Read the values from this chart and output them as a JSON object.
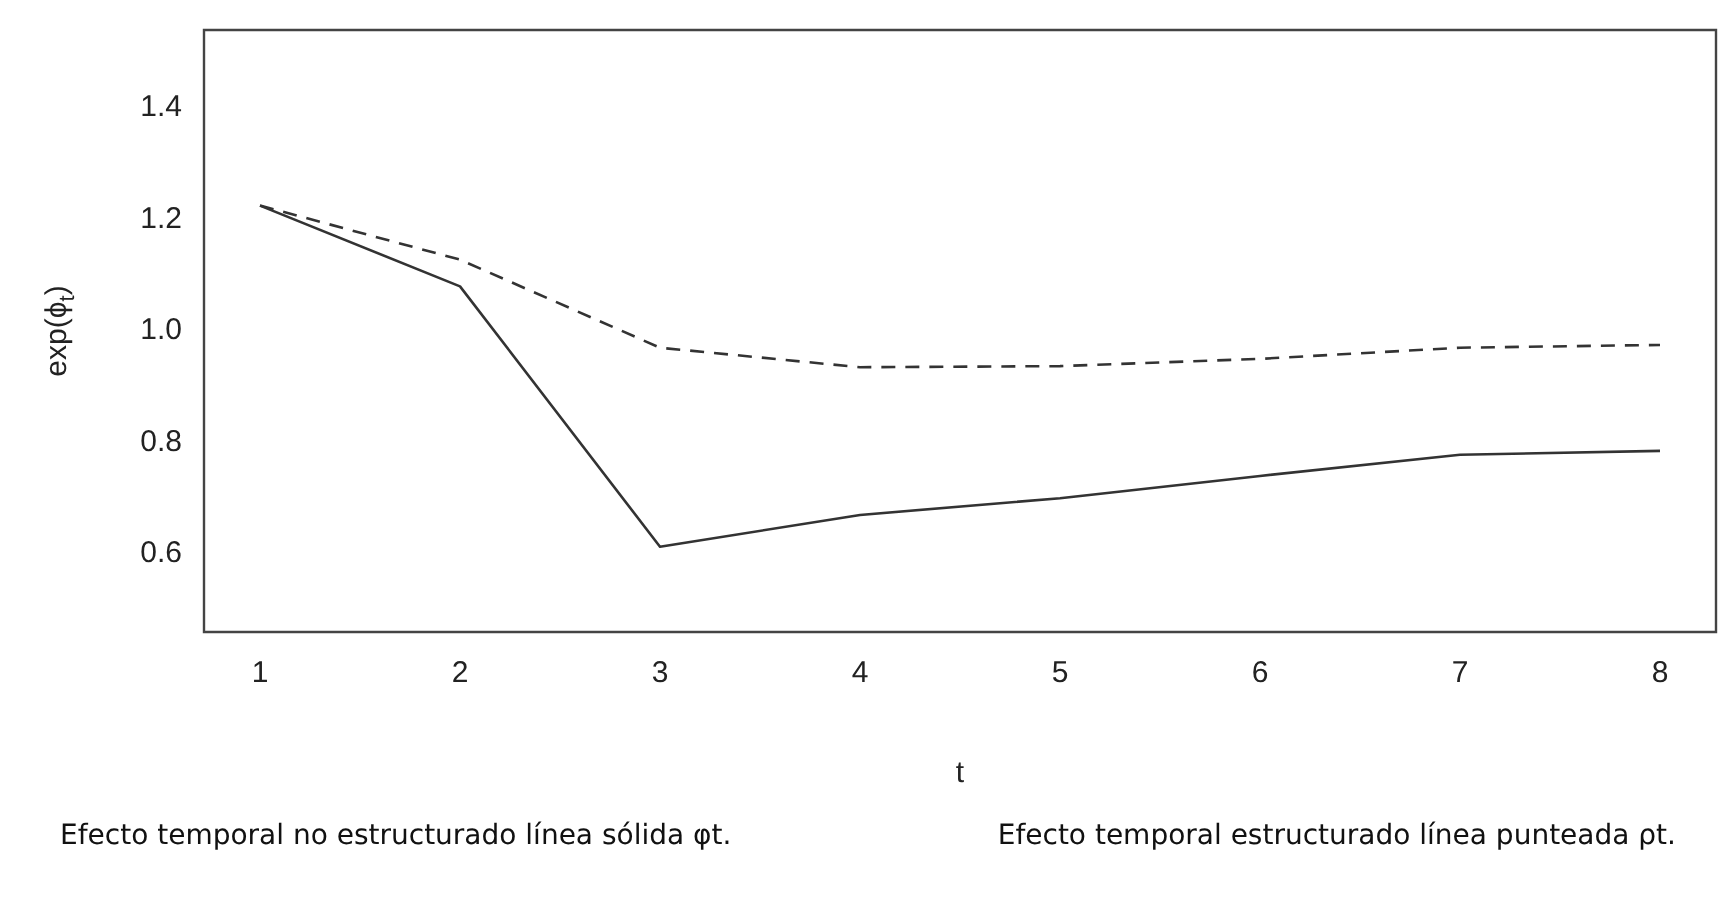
{
  "chart_data": {
    "type": "line",
    "xlabel": "t",
    "ylabel": "exp(ϕ$_{t}$)",
    "x": [
      1,
      2,
      3,
      4,
      5,
      6,
      7,
      8
    ],
    "series": [
      {
        "color": "#333333",
        "line_style": "solid",
        "values": [
          1.225,
          1.08,
          0.613,
          0.67,
          0.7,
          0.74,
          0.778,
          0.785
        ]
      },
      {
        "color": "#333333",
        "line_style": "dashed",
        "values": [
          1.225,
          1.128,
          0.97,
          0.935,
          0.937,
          0.95,
          0.97,
          0.975
        ]
      }
    ],
    "xlim": [
      0.72,
      8.28
    ],
    "xticks": [
      1,
      2,
      3,
      4,
      5,
      6,
      7,
      8
    ],
    "ylim": [
      0.46,
      1.54
    ],
    "yticks": [
      0.6,
      0.8,
      {
        "value": 1,
        "label": "1.0"
      },
      1.2,
      1.4
    ],
    "grid": false,
    "legend": false,
    "marker": "none",
    "annotations": [
      "Efecto temporal no estructurado línea sólida φt.",
      "Efecto temporal estructurado línea punteada ρt."
    ]
  }
}
